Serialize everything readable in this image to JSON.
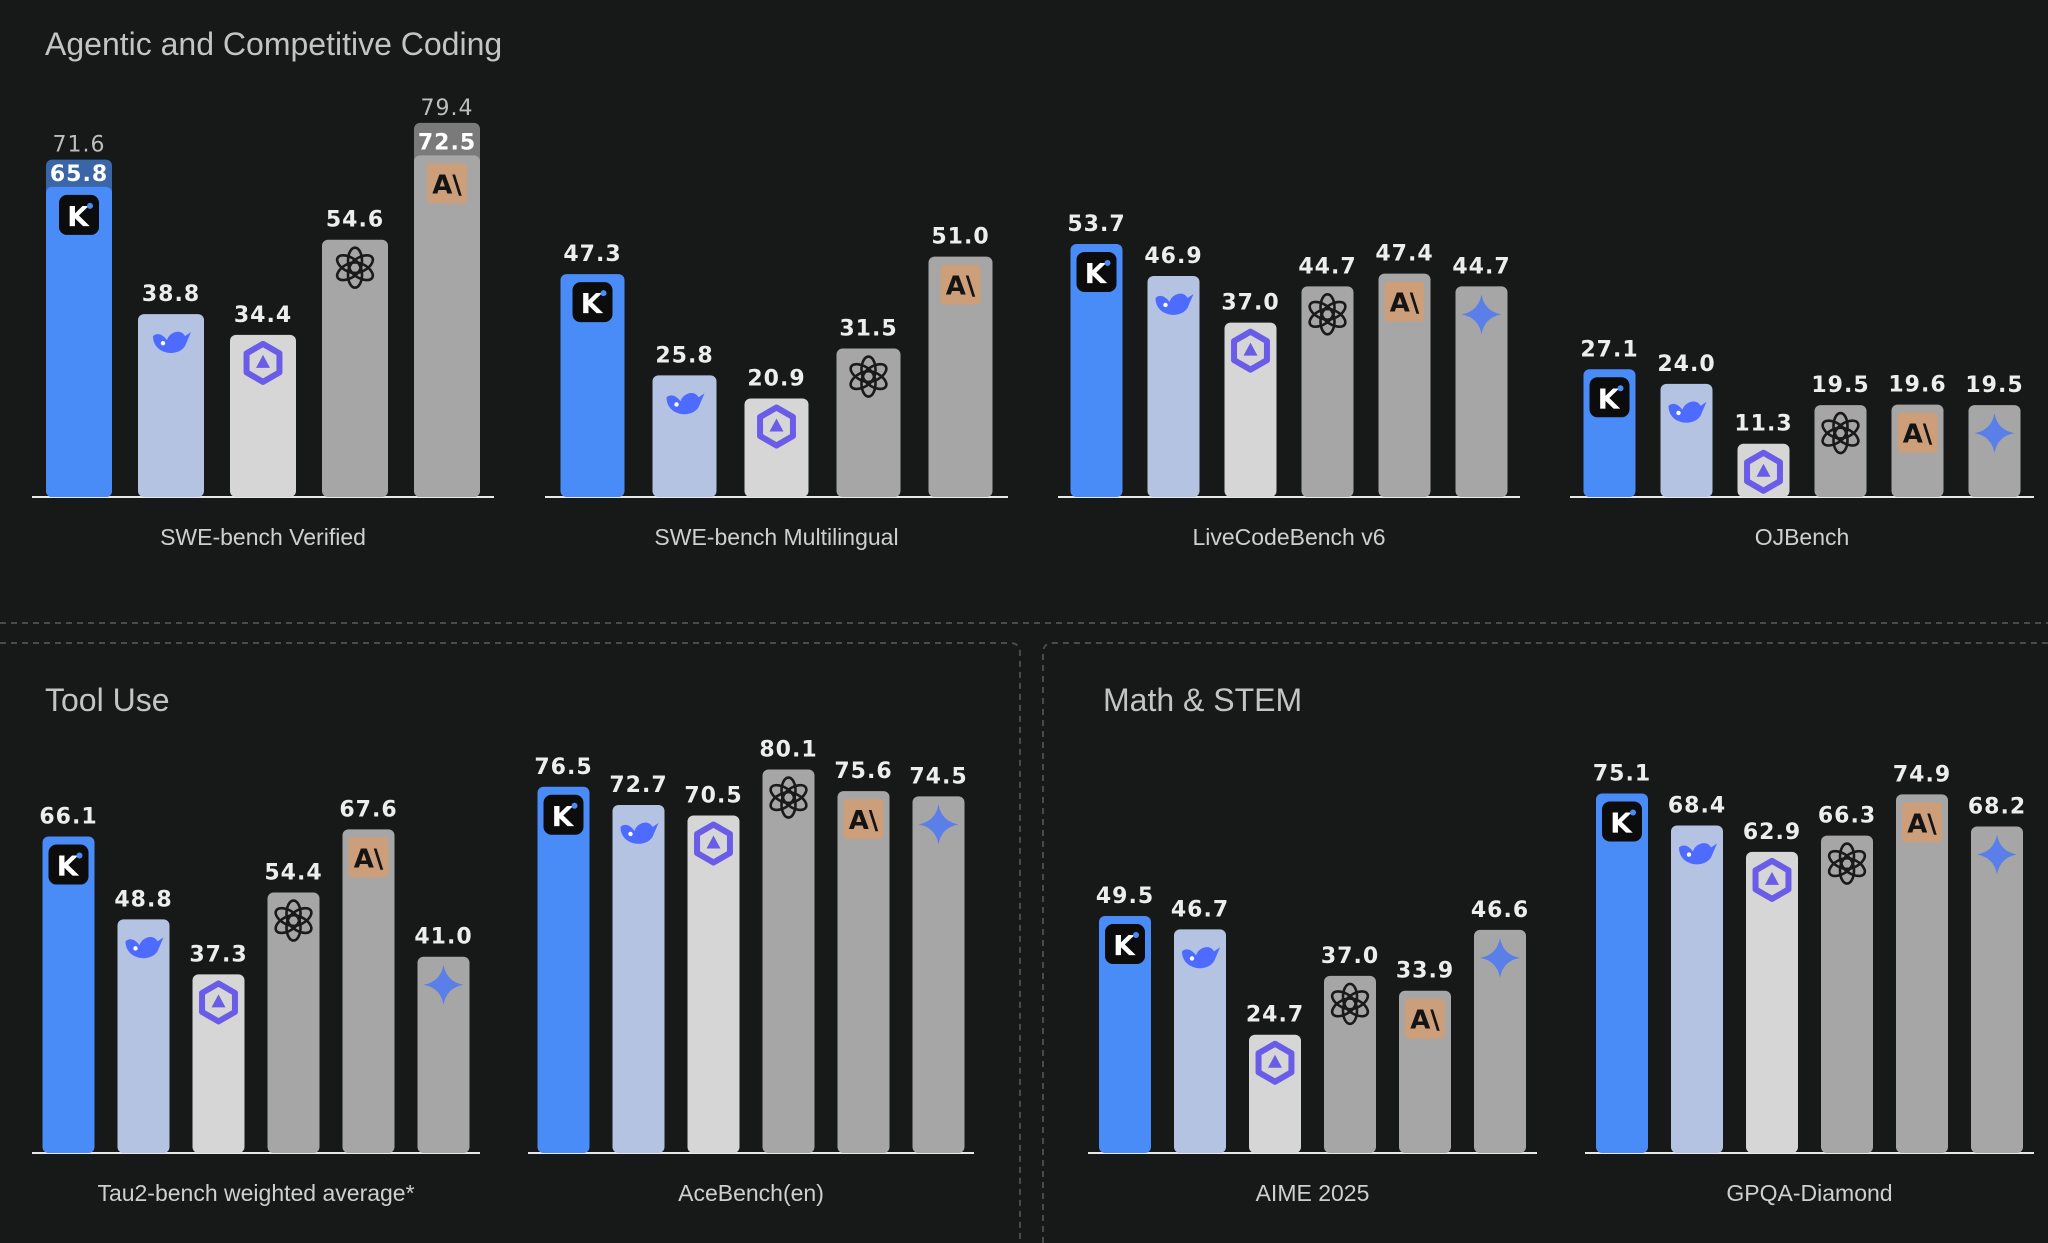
{
  "sections": {
    "coding": "Agentic and Competitive Coding",
    "tool": "Tool Use",
    "math": "Math & STEM"
  },
  "colors": {
    "kimi": "#4a8cf7",
    "deepseek": "#b3c3e1",
    "qwen": "#d6d6d6",
    "openai": "#a6a6a6",
    "anthropic": "#a6a6a6",
    "gemini": "#a6a6a6",
    "anthropic_badge": "#cd9e7a",
    "kimi_extra": "#3a66a8",
    "anthropic_extra": "#7a7a7a"
  },
  "models": [
    "kimi",
    "deepseek",
    "qwen",
    "openai",
    "anthropic",
    "gemini"
  ],
  "model_icons": {
    "kimi": "k-logo-icon",
    "deepseek": "whale-icon",
    "qwen": "qwen-star-icon",
    "openai": "openai-knot-icon",
    "anthropic": "anthropic-ai-icon",
    "gemini": "gemini-sparkle-icon"
  },
  "chart_data": [
    {
      "type": "bar",
      "section": "coding",
      "title": "SWE-bench Verified",
      "models": [
        "kimi",
        "deepseek",
        "qwen",
        "openai",
        "anthropic"
      ],
      "values": [
        65.8,
        38.8,
        34.4,
        54.6,
        72.5
      ],
      "extended_values": [
        71.6,
        null,
        null,
        null,
        79.4
      ],
      "ylim": [
        0,
        80
      ]
    },
    {
      "type": "bar",
      "section": "coding",
      "title": "SWE-bench Multilingual",
      "models": [
        "kimi",
        "deepseek",
        "qwen",
        "openai",
        "anthropic"
      ],
      "values": [
        47.3,
        25.8,
        20.9,
        31.5,
        51.0
      ],
      "ylim": [
        0,
        80
      ]
    },
    {
      "type": "bar",
      "section": "coding",
      "title": "LiveCodeBench v6",
      "models": [
        "kimi",
        "deepseek",
        "qwen",
        "openai",
        "anthropic",
        "gemini"
      ],
      "values": [
        53.7,
        46.9,
        37.0,
        44.7,
        47.4,
        44.7
      ],
      "ylim": [
        0,
        80
      ]
    },
    {
      "type": "bar",
      "section": "coding",
      "title": "OJBench",
      "models": [
        "kimi",
        "deepseek",
        "qwen",
        "openai",
        "anthropic",
        "gemini"
      ],
      "values": [
        27.1,
        24.0,
        11.3,
        19.5,
        19.6,
        19.5
      ],
      "ylim": [
        0,
        80
      ]
    },
    {
      "type": "bar",
      "section": "tool",
      "title": "Tau2-bench weighted average*",
      "models": [
        "kimi",
        "deepseek",
        "qwen",
        "openai",
        "anthropic",
        "gemini"
      ],
      "values": [
        66.1,
        48.8,
        37.3,
        54.4,
        67.6,
        41.0
      ],
      "ylim": [
        0,
        80
      ]
    },
    {
      "type": "bar",
      "section": "tool",
      "title": "AceBench(en)",
      "models": [
        "kimi",
        "deepseek",
        "qwen",
        "openai",
        "anthropic",
        "gemini"
      ],
      "values": [
        76.5,
        72.7,
        70.5,
        80.1,
        75.6,
        74.5
      ],
      "ylim": [
        0,
        80
      ]
    },
    {
      "type": "bar",
      "section": "math",
      "title": "AIME 2025",
      "models": [
        "kimi",
        "deepseek",
        "qwen",
        "openai",
        "anthropic",
        "gemini"
      ],
      "values": [
        49.5,
        46.7,
        24.7,
        37.0,
        33.9,
        46.6
      ],
      "ylim": [
        0,
        80
      ]
    },
    {
      "type": "bar",
      "section": "math",
      "title": "GPQA-Diamond",
      "models": [
        "kimi",
        "deepseek",
        "qwen",
        "openai",
        "anthropic",
        "gemini"
      ],
      "values": [
        75.1,
        68.4,
        62.9,
        66.3,
        74.9,
        68.2
      ],
      "ylim": [
        0,
        80
      ]
    }
  ]
}
